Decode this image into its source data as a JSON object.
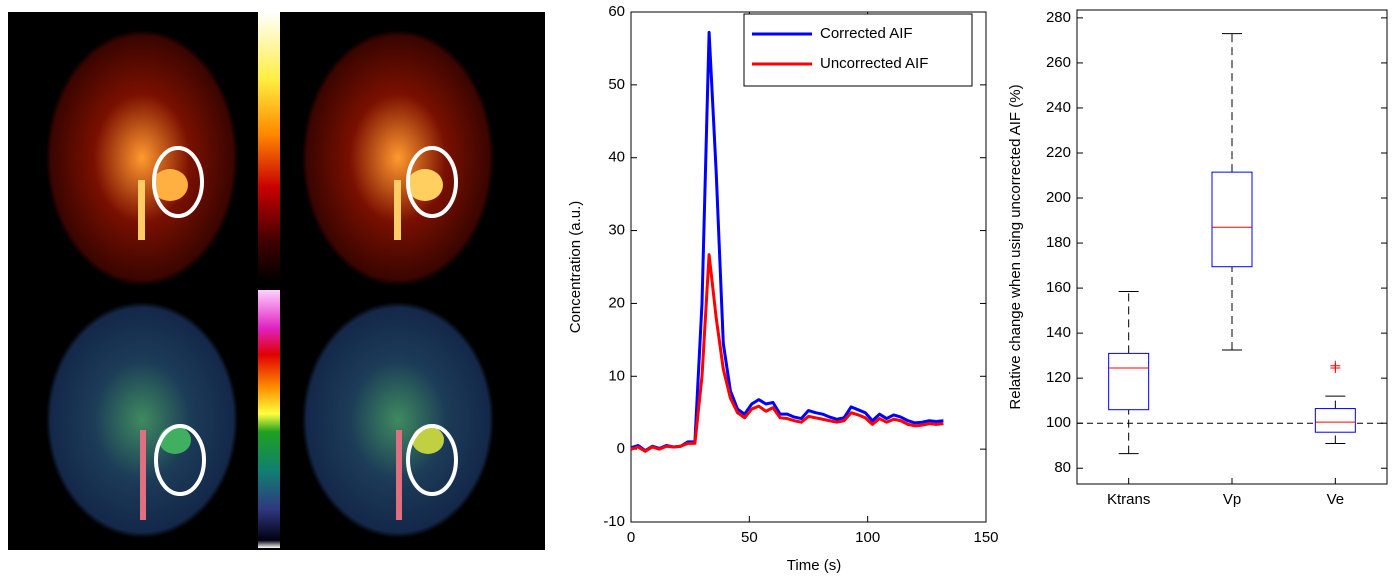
{
  "chart_data": [
    {
      "type": "line",
      "xlabel": "Time (s)",
      "ylabel": "Concentration (a.u.)",
      "x": [
        0,
        3,
        6,
        9,
        12,
        15,
        18,
        21,
        24,
        27,
        30,
        33,
        36,
        39,
        42,
        45,
        48,
        51,
        54,
        57,
        60,
        63,
        66,
        69,
        72,
        75,
        78,
        81,
        84,
        87,
        90,
        93,
        96,
        99,
        102,
        105,
        108,
        111,
        114,
        117,
        120,
        123,
        126,
        129,
        132
      ],
      "series": [
        {
          "name": "Corrected AIF",
          "color": "#0000ff",
          "values": [
            0.2,
            0.5,
            -0.2,
            0.4,
            0.1,
            0.5,
            0.3,
            0.4,
            1,
            1,
            20,
            57.2,
            38,
            14.5,
            8,
            5.5,
            4.8,
            6.2,
            6.8,
            6.2,
            6.4,
            4.8,
            4.8,
            4.4,
            4.2,
            5.3,
            5,
            4.8,
            4.4,
            4.1,
            4.3,
            5.8,
            5.4,
            5,
            3.9,
            4.8,
            4.2,
            4.7,
            4.4,
            3.9,
            3.6,
            3.7,
            3.9,
            3.8,
            3.9
          ]
        },
        {
          "name": "Uncorrected AIF",
          "color": "#ff0000",
          "values": [
            0,
            0.3,
            -0.3,
            0.3,
            0,
            0.4,
            0.3,
            0.4,
            0.8,
            0.8,
            10,
            26.7,
            18,
            11,
            7,
            5,
            4.3,
            5.5,
            5.9,
            5.2,
            5.7,
            4.3,
            4.2,
            3.9,
            3.7,
            4.5,
            4.3,
            4.1,
            3.9,
            3.7,
            3.9,
            5,
            4.7,
            4.3,
            3.4,
            4.2,
            3.7,
            4.1,
            3.9,
            3.4,
            3.2,
            3.3,
            3.5,
            3.4,
            3.5
          ]
        }
      ],
      "xlim": [
        0,
        150
      ],
      "xticks": [
        0,
        50,
        100,
        150
      ],
      "ylim": [
        -10,
        60
      ],
      "yticks": [
        -10,
        0,
        10,
        20,
        30,
        40,
        50,
        60
      ],
      "legend": "upper right"
    },
    {
      "type": "box",
      "ylabel": "Relative change when using uncorrected AIF (%)",
      "categories": [
        "Ktrans",
        "Vp",
        "Ve"
      ],
      "stats": [
        {
          "whislo": 86.5,
          "q1": 106,
          "med": 124.5,
          "q3": 131,
          "whishi": 158.5,
          "fliers": []
        },
        {
          "whislo": 132.5,
          "q1": 169.5,
          "med": 187,
          "q3": 211.5,
          "whishi": 273,
          "fliers": []
        },
        {
          "whislo": 91,
          "q1": 96,
          "med": 100.5,
          "q3": 106.5,
          "whishi": 112,
          "fliers": [
            124.5,
            125.5
          ]
        }
      ],
      "box_color": "#0000ff",
      "median_color": "#ff0000",
      "flier_color": "#ff0000",
      "reference_line": 100,
      "ylim": [
        73,
        283.5
      ],
      "yticks": [
        80,
        100,
        120,
        140,
        160,
        180,
        200,
        220,
        240,
        260,
        280
      ]
    }
  ]
}
